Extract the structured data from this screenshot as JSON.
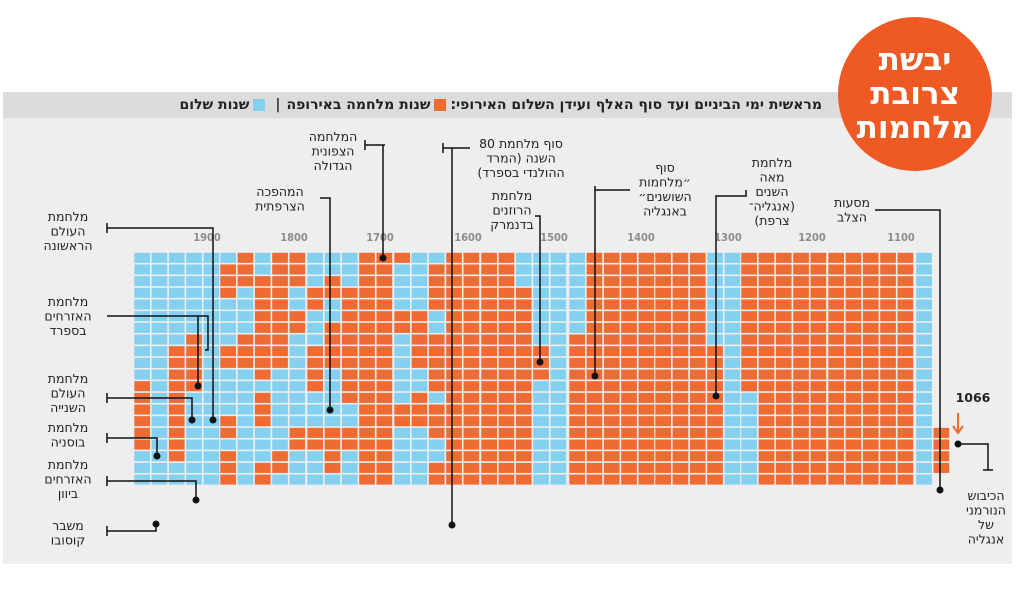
{
  "title": {
    "lines": [
      "יבשת",
      "צרובת",
      "מלחמות"
    ]
  },
  "header": {
    "text": "מראשית ימי הביניים ועד סוף האלף ועידן השלום האירופי:",
    "war_label": "שנות מלחמה באירופה",
    "separator": "|",
    "peace_label": "שנות שלום"
  },
  "colors": {
    "war": "#ef6b34",
    "peace": "#85d0ef",
    "badge": "#ef5a24"
  },
  "chart_data": {
    "type": "heatmap",
    "description_units": "years; each cell one year, columns of 20 years, centuries right-to-left",
    "ticks": [
      "1100",
      "1200",
      "1300",
      "1400",
      "1500",
      "1600",
      "1700",
      "1800",
      "1900"
    ],
    "first_year_label": "1066",
    "centuries": [
      {
        "start": 1000,
        "cols": [
          {
            "war": [
              [
                0,
                2
              ]
            ]
          },
          {
            "war": [],
            "blank_top": 11
          }
        ]
      },
      {
        "start": 1100,
        "cols": [
          {
            "war": [
              [
                0,
                19
              ]
            ]
          },
          {
            "war": [
              [
                0,
                19
              ]
            ]
          },
          {
            "war": [
              [
                0,
                19
              ]
            ]
          },
          {
            "war": [
              [
                0,
                19
              ]
            ]
          },
          {
            "war": [
              [
                0,
                19
              ]
            ]
          }
        ]
      },
      {
        "start": 1200,
        "cols": [
          {
            "war": [
              [
                0,
                19
              ]
            ]
          },
          {
            "war": [
              [
                0,
                19
              ]
            ]
          },
          {
            "war": [
              [
                0,
                19
              ]
            ]
          },
          {
            "war": [
              [
                0,
                19
              ]
            ]
          },
          {
            "war": [
              [
                0,
                11
              ]
            ]
          }
        ]
      },
      {
        "start": 1300,
        "cols": [
          {
            "war": []
          },
          {
            "war": [
              [
                8,
                19
              ]
            ]
          },
          {
            "war": [
              [
                0,
                19
              ]
            ]
          },
          {
            "war": [
              [
                0,
                19
              ]
            ]
          },
          {
            "war": [
              [
                0,
                19
              ]
            ]
          }
        ]
      },
      {
        "start": 1400,
        "cols": [
          {
            "war": [
              [
                0,
                19
              ]
            ]
          },
          {
            "war": [
              [
                0,
                19
              ]
            ]
          },
          {
            "war": [
              [
                0,
                19
              ]
            ]
          },
          {
            "war": [
              [
                0,
                19
              ]
            ]
          },
          {
            "war": [
              [
                7,
                19
              ]
            ]
          }
        ]
      },
      {
        "start": 1500,
        "cols": [
          {
            "war": []
          },
          {
            "war": [
              [
                8,
                10
              ]
            ]
          },
          {
            "war": [
              [
                3,
                19
              ]
            ]
          },
          {
            "war": [
              [
                0,
                19
              ]
            ]
          },
          {
            "war": [
              [
                0,
                19
              ]
            ]
          }
        ]
      },
      {
        "start": 1600,
        "cols": [
          {
            "war": [
              [
                0,
                19
              ]
            ]
          },
          {
            "war": [
              [
                0,
                19
              ]
            ]
          },
          {
            "war": [
              [
                1,
                4
              ],
              [
                7,
                11
              ],
              [
                13,
                15
              ],
              [
                18,
                19
              ]
            ]
          },
          {
            "war": [
              [
                5,
                9
              ],
              [
                12,
                14
              ]
            ]
          },
          {
            "war": [
              [
                0,
                0
              ],
              [
                5,
                6
              ],
              [
                13,
                14
              ]
            ]
          }
        ]
      },
      {
        "start": 1700,
        "cols": [
          {
            "war": [
              [
                0,
                19
              ]
            ]
          },
          {
            "war": [
              [
                0,
                19
              ]
            ]
          },
          {
            "war": [
              [
                3,
                12
              ],
              [
                15,
                16
              ]
            ]
          },
          {
            "war": [
              [
                2,
                3
              ],
              [
                6,
                9
              ],
              [
                15,
                18
              ]
            ]
          },
          {
            "war": [
              [
                3,
                4
              ],
              [
                8,
                11
              ],
              [
                15,
                16
              ]
            ]
          }
        ]
      },
      {
        "start": 1800,
        "cols": [
          {
            "war": [
              [
                0,
                2
              ],
              [
                5,
                6
              ],
              [
                15,
                16
              ]
            ]
          },
          {
            "war": [
              [
                0,
                9
              ],
              [
                17,
                18
              ]
            ]
          },
          {
            "war": [
              [
                2,
                10
              ],
              [
                12,
                14
              ],
              [
                18,
                19
              ]
            ]
          },
          {
            "war": [
              [
                0,
                2
              ],
              [
                7,
                9
              ]
            ]
          },
          {
            "war": [
              [
                1,
                3
              ],
              [
                8,
                9
              ],
              [
                14,
                15
              ],
              [
                17,
                19
              ]
            ]
          }
        ]
      },
      {
        "start": 1900,
        "cols": [
          {
            "war": []
          },
          {
            "war": [
              [
                7,
                11
              ]
            ]
          },
          {
            "war": [
              [
                8,
                17
              ]
            ]
          },
          {
            "war": []
          },
          {
            "war": [
              [
                11,
                15
              ],
              [
                15,
                16
              ]
            ]
          }
        ]
      }
    ],
    "annotations": [
      {
        "lines": [
          "מסעות",
          "הצלב"
        ]
      },
      {
        "lines": [
          "הכיבוש",
          "הנורמני",
          "של",
          "אנגליה"
        ]
      },
      {
        "lines": [
          "מלחמת",
          "מאה",
          "השנים",
          "(אנגליה־",
          "צרפת)"
        ]
      },
      {
        "lines": [
          "סוף",
          "״מלחמות",
          "השושנים״",
          "באנגליה"
        ]
      },
      {
        "lines": [
          "מלחמת",
          "הרוזנים",
          "בדנמרק"
        ]
      },
      {
        "lines": [
          "סוף מלחמת 80",
          "השנה (המרד",
          "ההולנדי בספרד)"
        ]
      },
      {
        "lines": [
          "המלחמה",
          "הצפונית",
          "הגדולה"
        ]
      },
      {
        "lines": [
          "המהפכה",
          "הצרפתית"
        ]
      },
      {
        "lines": [
          "מלחמת",
          "העולם",
          "הראשונה"
        ]
      },
      {
        "lines": [
          "מלחמת",
          "האזרחים",
          "בספרד"
        ]
      },
      {
        "lines": [
          "מלחמת",
          "העולם",
          "השנייה"
        ]
      },
      {
        "lines": [
          "מלחמת",
          "בוסניה"
        ]
      },
      {
        "lines": [
          "מלחמת",
          "האזרחים",
          "ביוון"
        ]
      },
      {
        "lines": [
          "משבר",
          "קוסובו"
        ]
      }
    ]
  }
}
